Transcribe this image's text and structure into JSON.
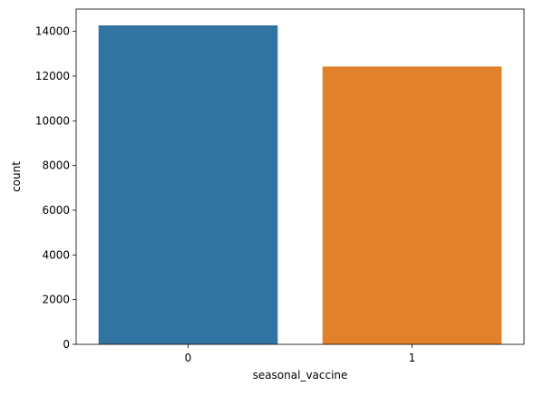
{
  "chart_data": {
    "type": "bar",
    "categories": [
      "0",
      "1"
    ],
    "values": [
      14270,
      12430
    ],
    "colors": [
      "#3274a1",
      "#e1812c"
    ],
    "title": "",
    "xlabel": "seasonal_vaccine",
    "ylabel": "count",
    "ylim": [
      0,
      15000
    ],
    "yticks": [
      0,
      2000,
      4000,
      6000,
      8000,
      10000,
      12000,
      14000
    ],
    "grid": false,
    "legend": "none"
  }
}
